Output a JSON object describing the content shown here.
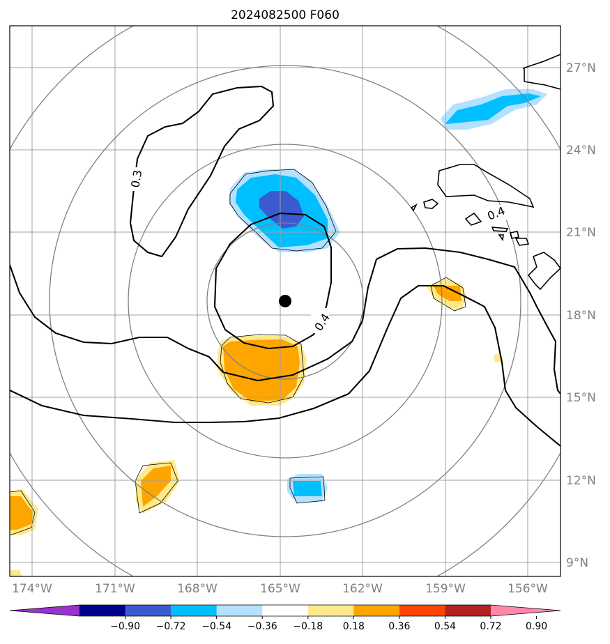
{
  "title": "2024082500 F060",
  "latitude_labels": [
    "27°N",
    "24°N",
    "21°N",
    "18°N",
    "15°N",
    "12°N",
    "9°N"
  ],
  "longitude_labels": [
    "174°W",
    "171°W",
    "168°W",
    "165°W",
    "162°W",
    "159°W",
    "156°W"
  ],
  "contour_labels": [
    "0.3",
    "0.4",
    "0.4"
  ],
  "colorbar": {
    "ticks": [
      "−0.90",
      "−0.72",
      "−0.54",
      "−0.36",
      "−0.18",
      "0.18",
      "0.36",
      "0.54",
      "0.72",
      "0.90"
    ],
    "colors": [
      "#9933cc",
      "#000088",
      "#3a5ad0",
      "#00bfff",
      "#b3e1ff",
      "#ffffff",
      "#ffe98a",
      "#ffa500",
      "#ff4500",
      "#b22222",
      "#ff88aa"
    ]
  },
  "colors": {
    "grid": "#a0a0a0",
    "range_ring": "#808080",
    "coast": "#000000",
    "storm_center": "#000000"
  }
}
